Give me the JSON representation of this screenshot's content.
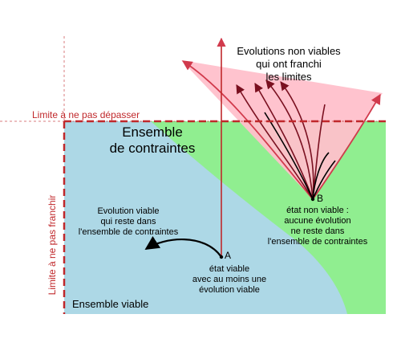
{
  "diagram": {
    "labels": {
      "non_viable_title_line1": "Evolutions non viables",
      "non_viable_title_line2": "qui ont franchi",
      "non_viable_title_line3": "les limites",
      "limit_not_exceed": "Limite à ne pas dépasser",
      "limit_not_cross": "Limite à ne pas franchir",
      "constraint_set_line1": "Ensemble",
      "constraint_set_line2": "de contraintes",
      "viable_evolution_line1": "Evolution viable",
      "viable_evolution_line2": "qui reste dans",
      "viable_evolution_line3": "l'ensemble de contraintes",
      "point_a": "A",
      "point_a_line1": "état viable",
      "point_a_line2": "avec au moins une",
      "point_a_line3": "évolution viable",
      "point_b": "B",
      "point_b_line1": "état non viable :",
      "point_b_line2": "aucune évolution",
      "point_b_line3": "ne reste dans",
      "point_b_line4": "l'ensemble de contraintes",
      "viable_set": "Ensemble viable"
    },
    "colors": {
      "constraint_set": "#90ee90",
      "viable_set": "#add8e6",
      "non_viable_cone": "#ffc0cb",
      "limit_line": "#c0282b",
      "cone_arrow": "#d13a4c",
      "evolution": "#000000"
    }
  }
}
